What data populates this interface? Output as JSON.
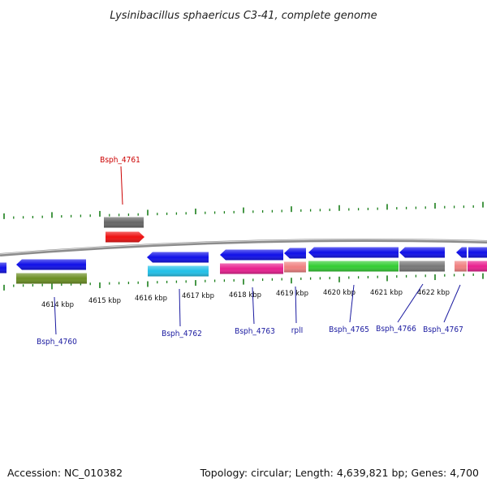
{
  "title": "Lysinibacillus sphaericus C3-41, complete genome",
  "accession_text": "Accession: NC_010382",
  "summary_text": "Topology: circular; Length: 4,639,821 bp; Genes: 4,700",
  "colors": {
    "backbone": "#8c8c8c",
    "ticks": "#1a7f1a",
    "label_forward": "#cc0000",
    "label_reverse": "#1a1aa0"
  },
  "kbp_labels": [
    "4614 kbp",
    "4615 kbp",
    "4616 kbp",
    "4617 kbp",
    "4618 kbp",
    "4619 kbp",
    "4620 kbp",
    "4621 kbp",
    "4622 kbp"
  ],
  "genes": [
    {
      "label": "Bsph_4760",
      "strand": "reverse",
      "color": "#6b8e23"
    },
    {
      "label": "Bsph_4761",
      "strand": "forward",
      "color": "#ee1111"
    },
    {
      "label": "Bsph_4762",
      "strand": "reverse",
      "color": "#22c0e8"
    },
    {
      "label": "Bsph_4763",
      "strand": "reverse",
      "color": "#e8208f"
    },
    {
      "label": "rplI",
      "strand": "reverse",
      "color": "#f08080"
    },
    {
      "label": "Bsph_4765",
      "strand": "reverse",
      "color": "#33cc33"
    },
    {
      "label": "Bsph_4766",
      "strand": "reverse",
      "color": "#777777"
    },
    {
      "label": "Bsph_4767",
      "strand": "reverse",
      "color": "#f08080"
    }
  ]
}
